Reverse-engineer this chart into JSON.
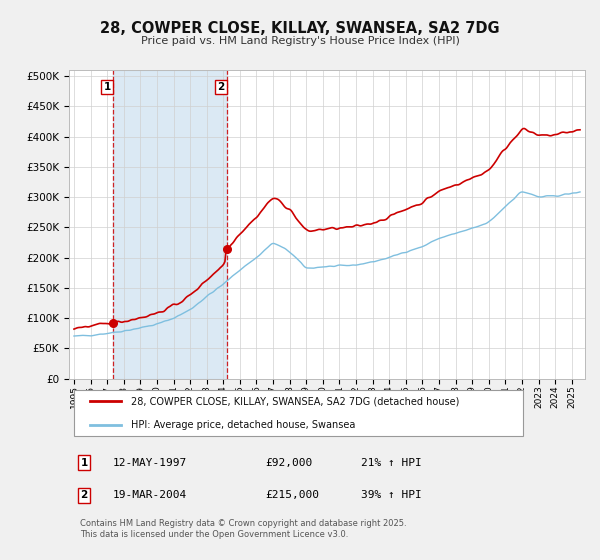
{
  "title": "28, COWPER CLOSE, KILLAY, SWANSEA, SA2 7DG",
  "subtitle": "Price paid vs. HM Land Registry's House Price Index (HPI)",
  "legend_line1": "28, COWPER CLOSE, KILLAY, SWANSEA, SA2 7DG (detached house)",
  "legend_line2": "HPI: Average price, detached house, Swansea",
  "sale1_date": "12-MAY-1997",
  "sale1_price": 92000,
  "sale1_hpi": "21% ↑ HPI",
  "sale1_label": "1",
  "sale1_year": 1997.36,
  "sale2_date": "19-MAR-2004",
  "sale2_price": 215000,
  "sale2_label": "2",
  "sale2_hpi": "39% ↑ HPI",
  "sale2_year": 2004.21,
  "hpi_color": "#7fbfdf",
  "price_color": "#cc0000",
  "shading_color": "#cce0f0",
  "vline_color": "#cc0000",
  "copyright_text": "Contains HM Land Registry data © Crown copyright and database right 2025.\nThis data is licensed under the Open Government Licence v3.0.",
  "yticks": [
    0,
    50000,
    100000,
    150000,
    200000,
    250000,
    300000,
    350000,
    400000,
    450000,
    500000
  ],
  "ymax": 510000,
  "xmin": 1994.7,
  "xmax": 2025.8,
  "background_color": "#f0f0f0",
  "plot_background": "#ffffff",
  "hpi_knots_x": [
    1995,
    1996,
    1997,
    1998,
    1999,
    2000,
    2001,
    2002,
    2003,
    2004,
    2005,
    2006,
    2007,
    2008,
    2009,
    2010,
    2011,
    2012,
    2013,
    2014,
    2015,
    2016,
    2017,
    2018,
    2019,
    2020,
    2021,
    2022,
    2023,
    2024,
    2025.5
  ],
  "hpi_knots_y": [
    70000,
    72000,
    75000,
    79000,
    84000,
    90000,
    100000,
    114000,
    136000,
    156000,
    180000,
    200000,
    225000,
    210000,
    182000,
    185000,
    186000,
    188000,
    193000,
    200000,
    210000,
    218000,
    232000,
    240000,
    248000,
    258000,
    285000,
    310000,
    300000,
    302000,
    308000
  ]
}
